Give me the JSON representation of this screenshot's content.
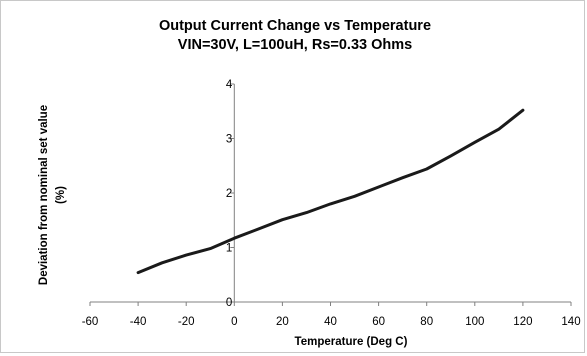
{
  "chart_data": {
    "type": "line",
    "title": "Output Current Change vs Temperature",
    "subtitle": "VIN=30V, L=100uH, Rs=0.33 Ohms",
    "xlabel": "Temperature (Deg C)",
    "ylabel": "Deviation from nominal set value (%)",
    "ylabel_lines": [
      "Deviation from nominal set value",
      "(%)"
    ],
    "xlim": [
      -60,
      140
    ],
    "ylim": [
      0,
      4
    ],
    "x_ticks": [
      -60,
      -40,
      -20,
      0,
      20,
      40,
      60,
      80,
      100,
      120,
      140
    ],
    "y_ticks": [
      0,
      1,
      2,
      3,
      4
    ],
    "grid": false,
    "legend": "none",
    "line_color": "#1a1a1a",
    "series": [
      {
        "x": [
          -40,
          -30,
          -20,
          -10,
          0,
          10,
          20,
          30,
          40,
          50,
          60,
          70,
          80,
          90,
          100,
          110,
          120
        ],
        "values": [
          0.54,
          0.72,
          0.86,
          0.98,
          1.17,
          1.34,
          1.51,
          1.64,
          1.8,
          1.94,
          2.11,
          2.28,
          2.44,
          2.68,
          2.93,
          3.17,
          3.52
        ]
      }
    ]
  }
}
